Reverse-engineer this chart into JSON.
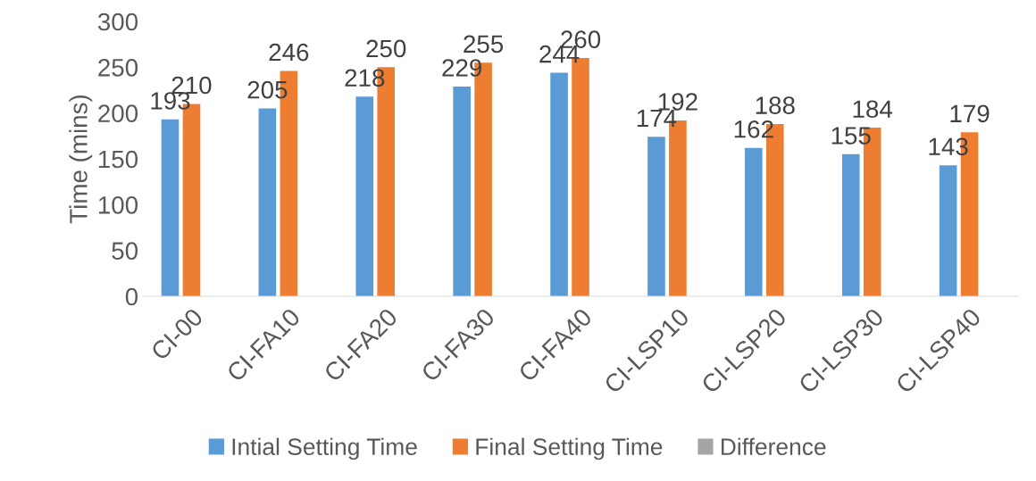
{
  "chart_data": {
    "type": "bar",
    "ylabel": "Time (mins)",
    "categories": [
      "CI-00",
      "CI-FA10",
      "CI-FA20",
      "CI-FA30",
      "CI-FA40",
      "CI-LSP10",
      "CI-LSP20",
      "CI-LSP30",
      "CI-LSP40"
    ],
    "series": [
      {
        "name": "Intial Setting Time",
        "color": "#5b9bd5",
        "values": [
          193,
          205,
          218,
          229,
          244,
          174,
          162,
          155,
          143
        ]
      },
      {
        "name": "Final Setting Time",
        "color": "#ed7d31",
        "values": [
          210,
          246,
          250,
          255,
          260,
          192,
          188,
          184,
          179
        ]
      },
      {
        "name": "Difference",
        "color": "#a5a5a5",
        "values": [
          null,
          null,
          null,
          null,
          null,
          null,
          null,
          null,
          null
        ]
      }
    ],
    "ylim": [
      0,
      300
    ],
    "yticks": [
      0,
      50,
      100,
      150,
      200,
      250,
      300
    ],
    "data_labels": true,
    "grid": false,
    "legend": "bottom"
  }
}
